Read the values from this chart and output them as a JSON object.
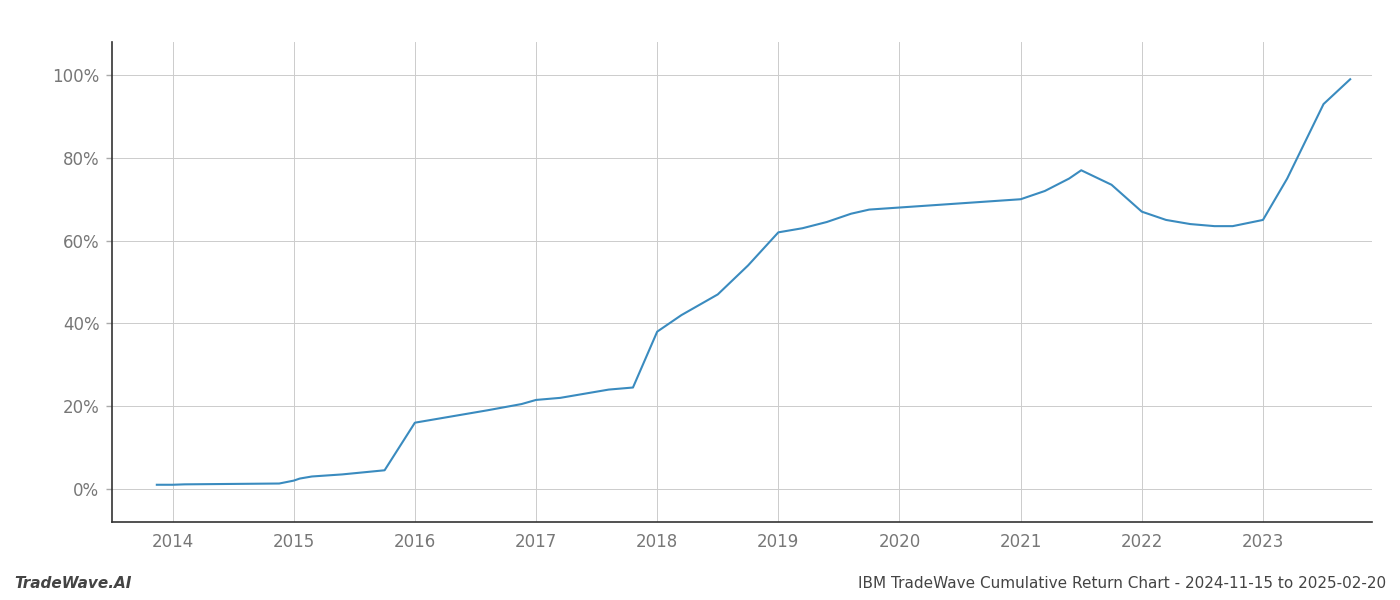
{
  "x_values": [
    2013.87,
    2014.0,
    2014.1,
    2014.88,
    2015.0,
    2015.05,
    2015.15,
    2015.4,
    2015.75,
    2016.0,
    2016.3,
    2016.6,
    2016.88,
    2017.0,
    2017.2,
    2017.4,
    2017.6,
    2017.8,
    2018.0,
    2018.2,
    2018.5,
    2018.75,
    2019.0,
    2019.2,
    2019.4,
    2019.6,
    2019.75,
    2020.0,
    2020.25,
    2020.5,
    2020.75,
    2021.0,
    2021.2,
    2021.4,
    2021.5,
    2021.75,
    2022.0,
    2022.2,
    2022.4,
    2022.6,
    2022.75,
    2023.0,
    2023.2,
    2023.5,
    2023.72
  ],
  "y_values": [
    1.0,
    1.0,
    1.1,
    1.3,
    2.0,
    2.5,
    3.0,
    3.5,
    4.5,
    16.0,
    17.5,
    19.0,
    20.5,
    21.5,
    22.0,
    23.0,
    24.0,
    24.5,
    38.0,
    42.0,
    47.0,
    54.0,
    62.0,
    63.0,
    64.5,
    66.5,
    67.5,
    68.0,
    68.5,
    69.0,
    69.5,
    70.0,
    72.0,
    75.0,
    77.0,
    73.5,
    67.0,
    65.0,
    64.0,
    63.5,
    63.5,
    65.0,
    75.0,
    93.0,
    99.0
  ],
  "x_ticks": [
    2014,
    2015,
    2016,
    2017,
    2018,
    2019,
    2020,
    2021,
    2022,
    2023
  ],
  "x_tick_labels": [
    "2014",
    "2015",
    "2016",
    "2017",
    "2018",
    "2019",
    "2020",
    "2021",
    "2022",
    "2023"
  ],
  "y_ticks": [
    0,
    20,
    40,
    60,
    80,
    100
  ],
  "y_tick_labels": [
    "0%",
    "20%",
    "40%",
    "60%",
    "80%",
    "100%"
  ],
  "line_color": "#3a8bbf",
  "line_width": 1.5,
  "background_color": "#ffffff",
  "grid_color": "#cccccc",
  "title": "IBM TradeWave Cumulative Return Chart - 2024-11-15 to 2025-02-20",
  "watermark": "TradeWave.AI",
  "xlim": [
    2013.5,
    2023.9
  ],
  "ylim": [
    -8,
    108
  ]
}
